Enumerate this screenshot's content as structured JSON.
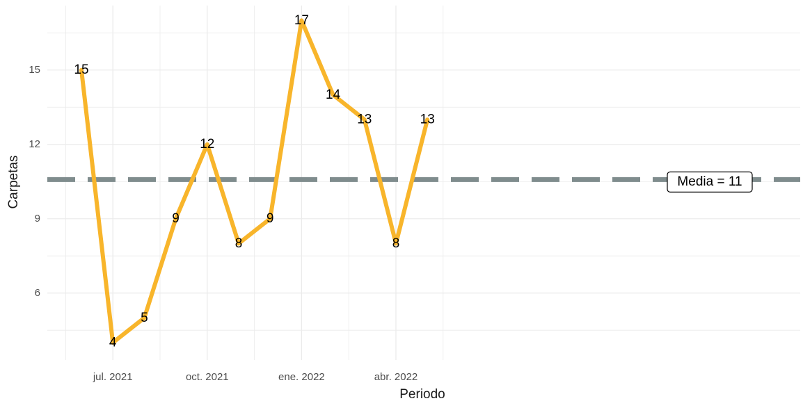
{
  "chart_data": {
    "type": "line",
    "xlabel": "Periodo",
    "ylabel": "Carpetas",
    "x": [
      "2021-06",
      "2021-07",
      "2021-08",
      "2021-09",
      "2021-10",
      "2021-11",
      "2021-12",
      "2022-01",
      "2022-02",
      "2022-03",
      "2022-04",
      "2022-05"
    ],
    "values": [
      15,
      4,
      5,
      9,
      12,
      8,
      9,
      17,
      14,
      13,
      8,
      13
    ],
    "x_ticks": [
      "jul. 2021",
      "oct. 2021",
      "ene. 2022",
      "abr. 2022"
    ],
    "y_ticks": [
      6,
      9,
      12,
      15
    ],
    "ylim": [
      3.3,
      17.6
    ],
    "grid": true,
    "mean_line": {
      "value": 10.58,
      "label": "Media = 11"
    },
    "colors": {
      "line": "#F8B52B",
      "mean": "#7F8C8D",
      "grid": "#EBEBEB"
    }
  }
}
